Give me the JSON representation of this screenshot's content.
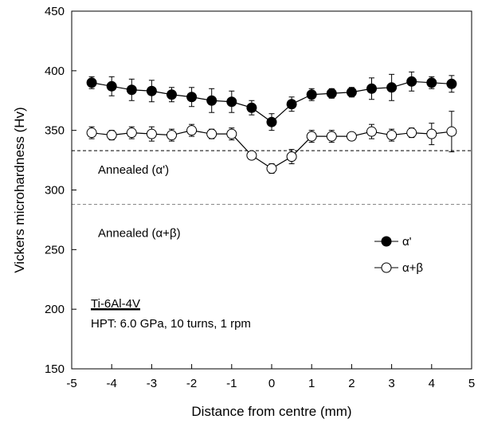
{
  "chart_data": {
    "type": "scatter",
    "xlabel": "Distance from centre (mm)",
    "ylabel": "Vickers microhardness (Hv)",
    "xlim": [
      -5,
      5
    ],
    "ylim": [
      150,
      450
    ],
    "xticks": [
      -5,
      -4,
      -3,
      -2,
      -1,
      0,
      1,
      2,
      3,
      4,
      5
    ],
    "yticks": [
      150,
      200,
      250,
      300,
      350,
      400,
      450
    ],
    "grid": false,
    "legend": "right",
    "series": [
      {
        "name": "α'",
        "marker": "filled-circle",
        "color": "#000000",
        "x": [
          -4.5,
          -4.0,
          -3.5,
          -3.0,
          -2.5,
          -2.0,
          -1.5,
          -1.0,
          -0.5,
          0.0,
          0.5,
          1.0,
          1.5,
          2.0,
          2.5,
          3.0,
          3.5,
          4.0,
          4.5
        ],
        "y": [
          390,
          387,
          384,
          383,
          380,
          378,
          375,
          374,
          369,
          357,
          372,
          380,
          381,
          382,
          385,
          386,
          391,
          390,
          389
        ],
        "err": [
          5,
          8,
          9,
          9,
          6,
          8,
          10,
          9,
          6,
          7,
          6,
          5,
          4,
          4,
          9,
          11,
          8,
          5,
          7
        ]
      },
      {
        "name": "α+β",
        "marker": "open-circle",
        "color": "#000000",
        "x": [
          -4.5,
          -4.0,
          -3.5,
          -3.0,
          -2.5,
          -2.0,
          -1.5,
          -1.0,
          -0.5,
          0.0,
          0.5,
          1.0,
          1.5,
          2.0,
          2.5,
          3.0,
          3.5,
          4.0,
          4.5
        ],
        "y": [
          348,
          346,
          348,
          347,
          346,
          350,
          347,
          347,
          329,
          318,
          328,
          345,
          345,
          345,
          349,
          346,
          348,
          347,
          349
        ],
        "err": [
          5,
          4,
          5,
          6,
          5,
          5,
          4,
          5,
          3,
          4,
          6,
          5,
          5,
          3,
          6,
          5,
          4,
          9,
          17
        ]
      }
    ],
    "reference_lines": [
      {
        "label": "Annealed (α')",
        "y": 333,
        "style": "dashed",
        "color": "#000000"
      },
      {
        "label": "Annealed (α+β)",
        "y": 288,
        "style": "dashed",
        "color": "#888888"
      }
    ],
    "annotation": {
      "material": "Ti-6Al-4V",
      "conditions": "HPT: 6.0 GPa, 10 turns, 1 rpm"
    }
  }
}
